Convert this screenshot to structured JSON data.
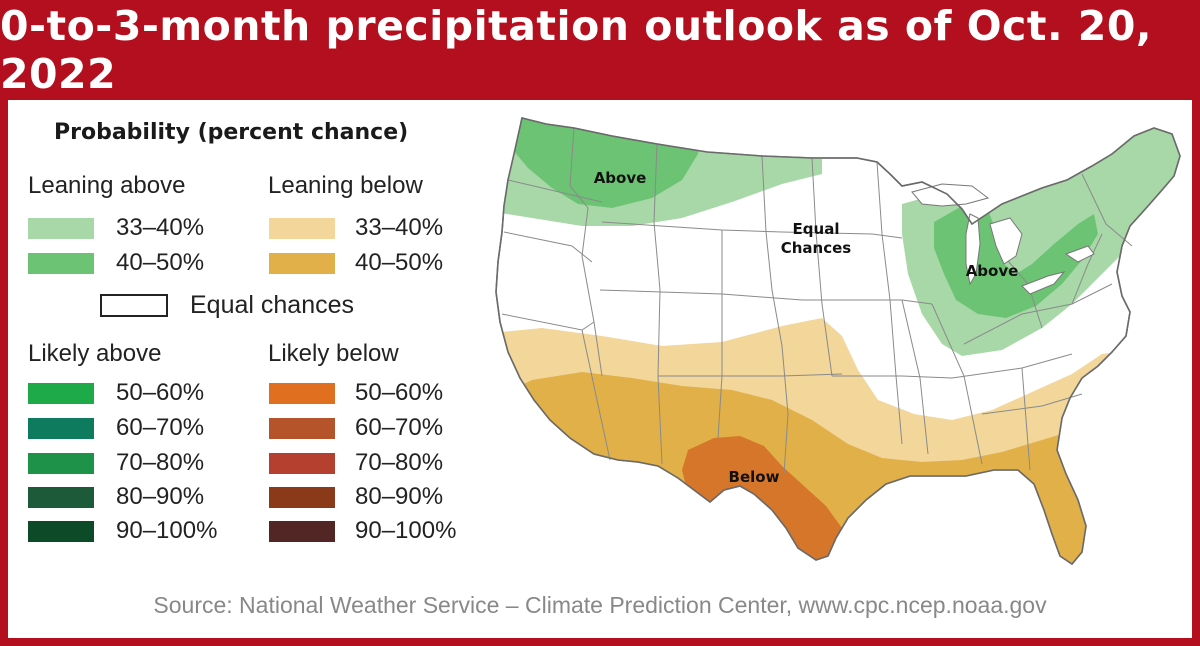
{
  "title": "0-to-3-month precipitation outlook as of Oct. 20, 2022",
  "legend": {
    "title": "Probability (percent chance)",
    "leaning_above": {
      "heading": "Leaning above",
      "items": [
        {
          "label": "33–40%",
          "color": "#a8d8a8"
        },
        {
          "label": "40–50%",
          "color": "#6cc374"
        }
      ]
    },
    "leaning_below": {
      "heading": "Leaning below",
      "items": [
        {
          "label": "33–40%",
          "color": "#f2d69a"
        },
        {
          "label": "40–50%",
          "color": "#e2b048"
        }
      ]
    },
    "equal_chances": {
      "label": "Equal chances",
      "color": "#ffffff"
    },
    "likely_above": {
      "heading": "Likely above",
      "items": [
        {
          "label": "50–60%",
          "color": "#1faa4a"
        },
        {
          "label": "60–70%",
          "color": "#0e7a5e"
        },
        {
          "label": "70–80%",
          "color": "#1e9248"
        },
        {
          "label": "80–90%",
          "color": "#1d5a3a"
        },
        {
          "label": "90–100%",
          "color": "#0d4a28"
        }
      ]
    },
    "likely_below": {
      "heading": "Likely below",
      "items": [
        {
          "label": "50–60%",
          "color": "#e07020"
        },
        {
          "label": "60–70%",
          "color": "#b5542a"
        },
        {
          "label": "70–80%",
          "color": "#b54030"
        },
        {
          "label": "80–90%",
          "color": "#8a3a18"
        },
        {
          "label": "90–100%",
          "color": "#532626"
        }
      ]
    }
  },
  "map": {
    "labels": {
      "above_northwest": "Above",
      "equal_chances_line1": "Equal",
      "equal_chances_line2": "Chances",
      "above_great_lakes": "Above",
      "below_south": "Below"
    },
    "colors": {
      "land_equal": "#ffffff",
      "leaning_above": "#a8d8a8",
      "above_40_50": "#6cc374",
      "leaning_below": "#f2d69a",
      "below_40_50": "#e2b048",
      "below_50_60": "#d6762a",
      "border": "#777777"
    }
  },
  "source": "Source: National Weather Service – Climate Prediction Center, www.cpc.ncep.noaa.gov"
}
